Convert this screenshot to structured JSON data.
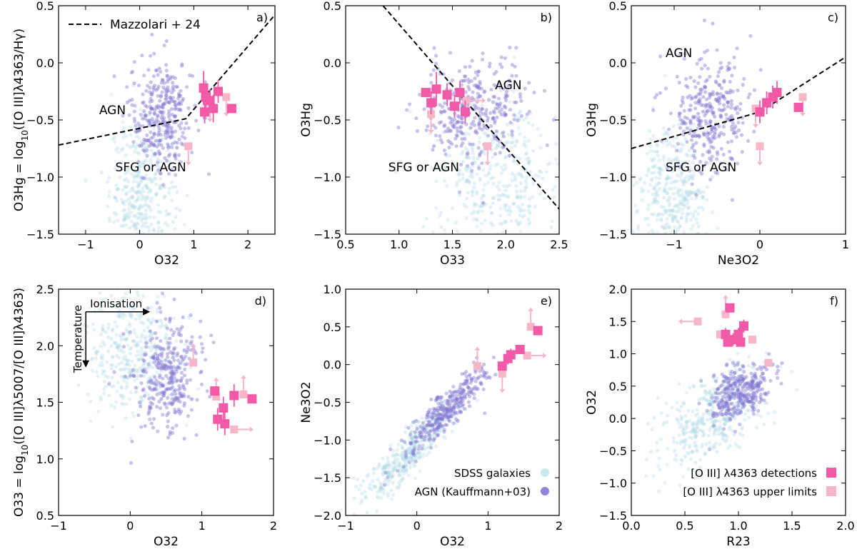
{
  "figure": {
    "colors": {
      "sdss": "#a8d8e4",
      "agn": "#7b6fd0",
      "detection": "#f25aa8",
      "upper_limit": "#f7b6c8",
      "line": "#000000"
    }
  },
  "chart_data": [
    {
      "type": "scatter",
      "panel": "a)",
      "xlabel": "O32",
      "ylabel": "O3Hg = log10([O III]λ4363/Hγ)",
      "xlim": [
        -1.5,
        2.5
      ],
      "ylim": [
        -1.5,
        0.5
      ],
      "xticks": [
        -1,
        0,
        1,
        2
      ],
      "yticks": [
        -1.5,
        -1.0,
        -0.5,
        0.0,
        0.5
      ],
      "legend": [
        {
          "label": "Mazzolari + 24",
          "style": "dashed"
        }
      ],
      "region_labels": [
        {
          "text": "AGN",
          "x": -0.75,
          "y": -0.45
        },
        {
          "text": "SFG or AGN",
          "x": -0.45,
          "y": -0.95
        }
      ],
      "demarcation": {
        "name": "Mazzolari + 24",
        "x": [
          -1.5,
          0.85,
          2.5
        ],
        "y": [
          -0.72,
          -0.49,
          0.42
        ]
      },
      "clouds": [
        {
          "series": "SDSS galaxies",
          "cx": 0.05,
          "cy": -1.15,
          "sx": 0.3,
          "sy": 0.32,
          "n": 380
        },
        {
          "series": "AGN (Kauffmann+03)",
          "cx": 0.4,
          "cy": -0.45,
          "sx": 0.3,
          "sy": 0.25,
          "n": 320
        }
      ],
      "detections": [
        {
          "x": 1.18,
          "y": -0.22,
          "yerr": 0.15
        },
        {
          "x": 1.22,
          "y": -0.3,
          "yerr": 0.1
        },
        {
          "x": 1.3,
          "y": -0.33,
          "yerr": 0.1
        },
        {
          "x": 1.36,
          "y": -0.4,
          "yerr": 0.12
        },
        {
          "x": 1.45,
          "y": -0.25,
          "yerr": 0.1
        },
        {
          "x": 1.2,
          "y": -0.43,
          "yerr": 0.1
        },
        {
          "x": 1.7,
          "y": -0.4,
          "yerr": 0.0
        }
      ],
      "upper_limits": [
        {
          "x": 1.6,
          "y": -0.3,
          "dir": "down"
        },
        {
          "x": 1.3,
          "y": -0.35,
          "dir": "down"
        },
        {
          "x": 0.9,
          "y": -0.73,
          "dir": "down"
        }
      ]
    },
    {
      "type": "scatter",
      "panel": "b)",
      "xlabel": "O33",
      "ylabel": "O3Hg",
      "xlim": [
        0.5,
        2.5
      ],
      "ylim": [
        -1.5,
        0.5
      ],
      "xticks": [
        0.5,
        1.0,
        1.5,
        2.0,
        2.5
      ],
      "yticks": [
        -1.5,
        -1.0,
        -0.5,
        0.0,
        0.5
      ],
      "region_labels": [
        {
          "text": "AGN",
          "x": 1.9,
          "y": -0.23
        },
        {
          "text": "SFG or AGN",
          "x": 0.9,
          "y": -0.95
        }
      ],
      "demarcation": {
        "x": [
          0.85,
          2.5
        ],
        "y": [
          0.5,
          -1.28
        ]
      },
      "clouds": [
        {
          "series": "SDSS galaxies",
          "cx": 1.9,
          "cy": -1.0,
          "sx": 0.3,
          "sy": 0.32,
          "n": 380
        },
        {
          "series": "AGN (Kauffmann+03)",
          "cx": 1.7,
          "cy": -0.42,
          "sx": 0.25,
          "sy": 0.22,
          "n": 320
        }
      ],
      "detections": [
        {
          "x": 1.35,
          "y": -0.23,
          "yerr": 0.15
        },
        {
          "x": 1.45,
          "y": -0.28,
          "yerr": 0.1
        },
        {
          "x": 1.57,
          "y": -0.26,
          "yerr": 0.1
        },
        {
          "x": 1.3,
          "y": -0.35,
          "yerr": 0.1
        },
        {
          "x": 1.52,
          "y": -0.38,
          "yerr": 0.1
        },
        {
          "x": 1.62,
          "y": -0.43,
          "yerr": 0.1
        },
        {
          "x": 1.25,
          "y": -0.26,
          "yerr": 0.0
        }
      ],
      "upper_limits": [
        {
          "x": 1.83,
          "y": -0.73,
          "dir": "down"
        },
        {
          "x": 1.3,
          "y": -0.45,
          "dir": "down"
        },
        {
          "x": 1.63,
          "y": -0.33,
          "dir": "right"
        }
      ]
    },
    {
      "type": "scatter",
      "panel": "c)",
      "xlabel": "Ne3O2",
      "ylabel": "O3Hg",
      "xlim": [
        -1.5,
        1.0
      ],
      "ylim": [
        -1.5,
        0.5
      ],
      "xticks": [
        -1,
        0,
        1
      ],
      "yticks": [
        -1.5,
        -1.0,
        -0.5,
        0.0,
        0.5
      ],
      "region_labels": [
        {
          "text": "AGN",
          "x": -1.1,
          "y": 0.05
        },
        {
          "text": "SFG or AGN",
          "x": -1.1,
          "y": -0.95
        }
      ],
      "demarcation": {
        "x": [
          -1.5,
          0.0,
          1.0
        ],
        "y": [
          -0.75,
          -0.43,
          0.05
        ]
      },
      "clouds": [
        {
          "series": "SDSS galaxies",
          "cx": -1.0,
          "cy": -1.15,
          "sx": 0.2,
          "sy": 0.3,
          "n": 380
        },
        {
          "series": "AGN (Kauffmann+03)",
          "cx": -0.6,
          "cy": -0.45,
          "sx": 0.22,
          "sy": 0.25,
          "n": 320
        }
      ],
      "detections": [
        {
          "x": 0.0,
          "y": -0.43,
          "yerr": 0.1
        },
        {
          "x": 0.08,
          "y": -0.35,
          "yerr": 0.1
        },
        {
          "x": 0.15,
          "y": -0.3,
          "yerr": 0.1
        },
        {
          "x": 0.2,
          "y": -0.26,
          "yerr": 0.1
        },
        {
          "x": 0.45,
          "y": -0.39,
          "yerr": 0.0
        }
      ],
      "upper_limits": [
        {
          "x": 0.5,
          "y": -0.3,
          "dir": "down"
        },
        {
          "x": -0.05,
          "y": -0.4,
          "dir": "down"
        },
        {
          "x": 0.0,
          "y": -0.73,
          "dir": "down"
        }
      ]
    },
    {
      "type": "scatter",
      "panel": "d)",
      "xlabel": "O32",
      "ylabel": "O33 = log10([O III]λ5007/[O III]λ4363)",
      "xlim": [
        -1,
        2
      ],
      "ylim": [
        0.5,
        2.5
      ],
      "xticks": [
        -1,
        0,
        1,
        2
      ],
      "yticks": [
        0.5,
        1.0,
        1.5,
        2.0,
        2.5
      ],
      "annotations": [
        {
          "text": "Ionisation",
          "arrow": "right"
        },
        {
          "text": "Temperature",
          "arrow": "down"
        }
      ],
      "clouds": [
        {
          "series": "SDSS galaxies",
          "cx": 0.05,
          "cy": 1.95,
          "sx": 0.35,
          "sy": 0.3,
          "n": 380
        },
        {
          "series": "AGN (Kauffmann+03)",
          "cx": 0.5,
          "cy": 1.75,
          "sx": 0.25,
          "sy": 0.25,
          "n": 320
        }
      ],
      "detections": [
        {
          "x": 1.18,
          "y": 1.6,
          "yerr": 0.0
        },
        {
          "x": 1.3,
          "y": 1.45,
          "yerr": 0.1
        },
        {
          "x": 1.22,
          "y": 1.35,
          "yerr": 0.1
        },
        {
          "x": 1.32,
          "y": 1.31,
          "yerr": 0.1
        },
        {
          "x": 1.45,
          "y": 1.56,
          "yerr": 0.1
        },
        {
          "x": 1.7,
          "y": 1.53,
          "yerr": 0.0
        }
      ],
      "upper_limits": [
        {
          "x": 0.88,
          "y": 1.85,
          "dir": "up"
        },
        {
          "x": 1.45,
          "y": 1.26,
          "dir": "right"
        },
        {
          "x": 1.58,
          "y": 1.57,
          "dir": "up"
        },
        {
          "x": 1.2,
          "y": 1.55,
          "dir": "up"
        }
      ]
    },
    {
      "type": "scatter",
      "panel": "e)",
      "xlabel": "O32",
      "ylabel": "Ne3O2",
      "xlim": [
        -1,
        2
      ],
      "ylim": [
        -2.0,
        1.0
      ],
      "xticks": [
        -1,
        0,
        1,
        2
      ],
      "yticks": [
        -2.0,
        -1.5,
        -1.0,
        -0.5,
        0.0,
        0.5,
        1.0
      ],
      "legend": [
        {
          "label": "SDSS galaxies",
          "series": "sdss"
        },
        {
          "label": "AGN (Kauffmann+03)",
          "series": "agn"
        }
      ],
      "clouds": [
        {
          "series": "SDSS galaxies",
          "cx": -0.1,
          "cy": -1.15,
          "sx": 0.35,
          "sy": 0.35,
          "n": 380,
          "corr": 0.9
        },
        {
          "series": "AGN (Kauffmann+03)",
          "cx": 0.4,
          "cy": -0.6,
          "sx": 0.3,
          "sy": 0.3,
          "n": 320,
          "corr": 0.9
        }
      ],
      "detections": [
        {
          "x": 1.2,
          "y": -0.02,
          "yerr": 0.0
        },
        {
          "x": 1.28,
          "y": 0.08,
          "yerr": 0.08
        },
        {
          "x": 1.32,
          "y": 0.13,
          "yerr": 0.08
        },
        {
          "x": 1.45,
          "y": 0.2,
          "yerr": 0.0
        },
        {
          "x": 1.7,
          "y": 0.45,
          "yerr": 0.0
        }
      ],
      "upper_limits": [
        {
          "x": 0.85,
          "y": -0.02,
          "dir": "up"
        },
        {
          "x": 1.2,
          "y": -0.12,
          "dir": "down"
        },
        {
          "x": 1.6,
          "y": 0.5,
          "dir": "up"
        },
        {
          "x": 1.55,
          "y": 0.12,
          "dir": "right"
        }
      ]
    },
    {
      "type": "scatter",
      "panel": "f)",
      "xlabel": "R23",
      "ylabel": "O32",
      "xlim": [
        0.0,
        2.0
      ],
      "ylim": [
        -1.5,
        2.0
      ],
      "xticks": [
        0.0,
        0.5,
        1.0,
        1.5,
        2.0
      ],
      "yticks": [
        -1.5,
        -1.0,
        -0.5,
        0.0,
        0.5,
        1.0,
        1.5,
        2.0
      ],
      "legend": [
        {
          "label": "[O III] λ4363 detections",
          "series": "detection"
        },
        {
          "label": "[O III] λ4363 upper limits",
          "series": "upper_limit"
        }
      ],
      "clouds": [
        {
          "series": "SDSS galaxies",
          "cx": 0.75,
          "cy": 0.0,
          "sx": 0.25,
          "sy": 0.4,
          "n": 380,
          "corr": 0.5
        },
        {
          "series": "AGN (Kauffmann+03)",
          "cx": 1.0,
          "cy": 0.4,
          "sx": 0.15,
          "sy": 0.22,
          "n": 320,
          "corr": 0.4
        }
      ],
      "detections": [
        {
          "x": 0.92,
          "y": 1.71,
          "yerr": 0.0
        },
        {
          "x": 0.88,
          "y": 1.3,
          "yerr": 0.1
        },
        {
          "x": 0.95,
          "y": 1.22,
          "yerr": 0.1
        },
        {
          "x": 1.0,
          "y": 1.3,
          "yerr": 0.1
        },
        {
          "x": 1.05,
          "y": 1.43,
          "yerr": 0.1
        },
        {
          "x": 0.9,
          "y": 1.18,
          "yerr": 0.0
        },
        {
          "x": 1.02,
          "y": 1.18,
          "yerr": 0.0
        }
      ],
      "upper_limits": [
        {
          "x": 0.62,
          "y": 1.5,
          "dir": "left"
        },
        {
          "x": 0.88,
          "y": 1.61,
          "dir": "up"
        },
        {
          "x": 1.13,
          "y": 1.22,
          "dir": "none"
        },
        {
          "x": 1.28,
          "y": 0.86,
          "dir": "none"
        },
        {
          "x": 0.83,
          "y": 1.3,
          "dir": "none"
        }
      ]
    }
  ]
}
